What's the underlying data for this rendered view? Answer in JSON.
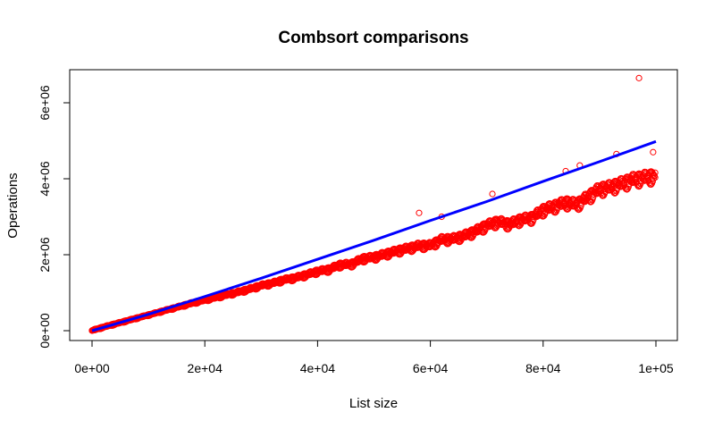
{
  "chart_data": {
    "type": "scatter",
    "title": "Combsort comparisons",
    "xlabel": "List size",
    "ylabel": "Operations",
    "xlim": [
      0,
      100000
    ],
    "ylim": [
      0,
      6800000
    ],
    "grid": false,
    "legend": "none",
    "x_ticks": [
      {
        "value": 0,
        "label": "0e+00"
      },
      {
        "value": 20000,
        "label": "2e+04"
      },
      {
        "value": 40000,
        "label": "4e+04"
      },
      {
        "value": 60000,
        "label": "6e+04"
      },
      {
        "value": 80000,
        "label": "8e+04"
      },
      {
        "value": 100000,
        "label": "1e+05"
      }
    ],
    "y_ticks": [
      {
        "value": 0,
        "label": "0e+00"
      },
      {
        "value": 2000000,
        "label": "2e+06"
      },
      {
        "value": 4000000,
        "label": "4e+06"
      },
      {
        "value": 6000000,
        "label": "6e+06"
      }
    ],
    "series": [
      {
        "kind": "points",
        "color": "#ff0000",
        "x": [
          0,
          2000,
          4000,
          6000,
          8000,
          10000,
          12000,
          14000,
          16000,
          18000,
          20000,
          22000,
          24000,
          26000,
          28000,
          30000,
          32000,
          34000,
          36000,
          38000,
          40000,
          42000,
          44000,
          46000,
          48000,
          50000,
          52000,
          54000,
          56000,
          58000,
          60000,
          62000,
          64000,
          66000,
          68000,
          70000,
          72000,
          74000,
          76000,
          78000,
          80000,
          82000,
          84000,
          86000,
          88000,
          90000,
          92000,
          94000,
          96000,
          98000,
          100000
        ],
        "y": [
          0,
          90000,
          170000,
          250000,
          330000,
          410000,
          490000,
          570000,
          650000,
          730000,
          800000,
          870000,
          940000,
          1010000,
          1090000,
          1180000,
          1240000,
          1330000,
          1380000,
          1460000,
          1550000,
          1600000,
          1720000,
          1740000,
          1880000,
          1920000,
          2000000,
          2080000,
          2150000,
          2220000,
          2230000,
          2380000,
          2400000,
          2480000,
          2600000,
          2750000,
          2850000,
          2780000,
          2900000,
          2950000,
          3150000,
          3250000,
          3350000,
          3300000,
          3500000,
          3700000,
          3750000,
          3850000,
          3950000,
          4000000,
          4050000
        ],
        "outliers": [
          {
            "x": 58000,
            "y": 3100000
          },
          {
            "x": 62000,
            "y": 3000000
          },
          {
            "x": 71000,
            "y": 3600000
          },
          {
            "x": 84000,
            "y": 4200000
          },
          {
            "x": 86500,
            "y": 4350000
          },
          {
            "x": 93000,
            "y": 4650000
          },
          {
            "x": 97000,
            "y": 6650000
          },
          {
            "x": 99500,
            "y": 4700000
          }
        ]
      },
      {
        "kind": "line",
        "color": "#0000ff",
        "x": [
          0,
          10000,
          20000,
          30000,
          40000,
          50000,
          60000,
          70000,
          80000,
          90000,
          100000
        ],
        "y": [
          0,
          430000,
          900000,
          1380000,
          1880000,
          2380000,
          2900000,
          3400000,
          3930000,
          4450000,
          4980000
        ]
      }
    ]
  }
}
